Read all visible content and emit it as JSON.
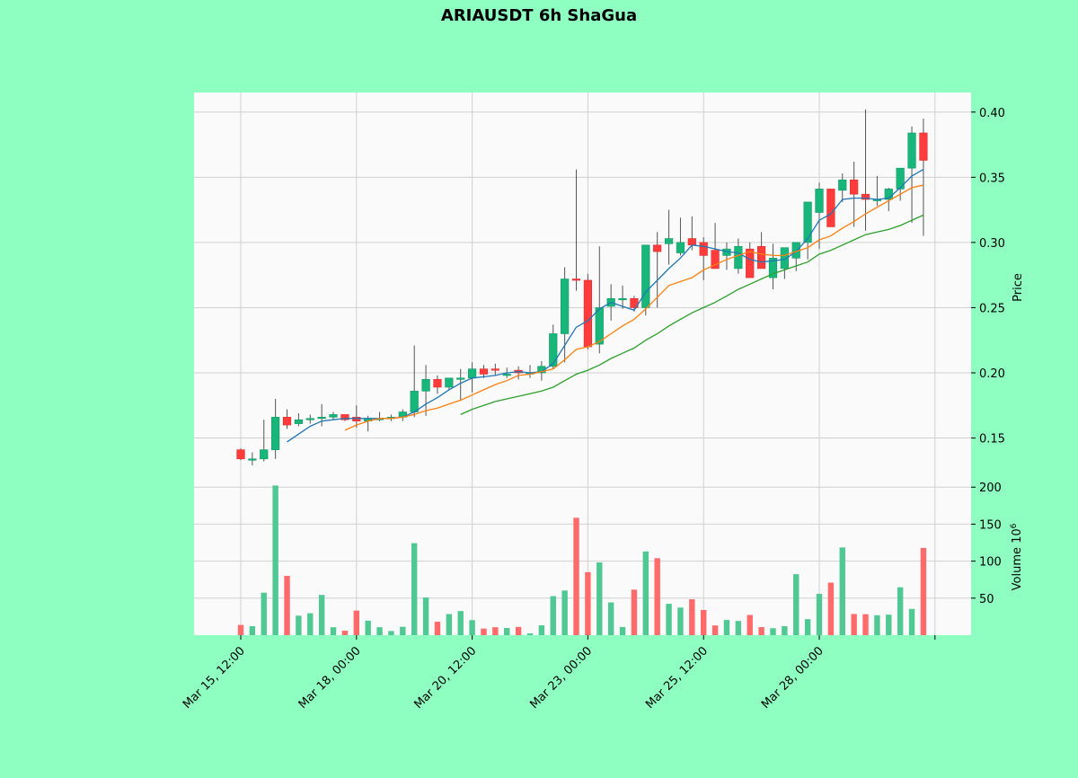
{
  "chart_data": {
    "type": "candlestick",
    "title": "ARIAUSDT 6h ShaGua",
    "price_axis": {
      "label": "Price",
      "ylim": [
        0.118,
        0.415
      ],
      "ticks": [
        0.15,
        0.2,
        0.25,
        0.3,
        0.35,
        0.4
      ],
      "tick_labels": [
        "0.15",
        "0.20",
        "0.25",
        "0.30",
        "0.35",
        "0.40"
      ]
    },
    "volume_axis": {
      "label": "Volume  10^6",
      "ylim": [
        0,
        210
      ],
      "ticks": [
        50,
        100,
        150,
        200
      ],
      "tick_labels": [
        "50",
        "100",
        "150",
        "200"
      ]
    },
    "x_ticks": [
      {
        "index": 0,
        "label": "Mar 15, 12:00"
      },
      {
        "index": 10,
        "label": "Mar 18, 00:00"
      },
      {
        "index": 20,
        "label": "Mar 20, 12:00"
      },
      {
        "index": 30,
        "label": "Mar 23, 00:00"
      },
      {
        "index": 40,
        "label": "Mar 25, 12:00"
      },
      {
        "index": 50,
        "label": "Mar 28, 00:00"
      },
      {
        "index": 60,
        "label": ""
      }
    ],
    "colors": {
      "up": "#18b67a",
      "down": "#ff3b3b",
      "volume_up": "#4fc894",
      "volume_down": "#ff6b6b",
      "ma1": "#1f77b4",
      "ma2": "#ff7f0e",
      "ma3": "#2ca02c",
      "grid": "#d0d0d0",
      "panel_bg": "#fafafa",
      "page_bg": "#8effc1"
    },
    "grid": true,
    "candles": {
      "open": [
        0.141,
        0.134,
        0.134,
        0.141,
        0.166,
        0.161,
        0.164,
        0.165,
        0.166,
        0.168,
        0.166,
        0.163,
        0.164,
        0.165,
        0.166,
        0.17,
        0.186,
        0.195,
        0.189,
        0.196,
        0.196,
        0.203,
        0.203,
        0.199,
        0.202,
        0.199,
        0.2,
        0.205,
        0.23,
        0.272,
        0.271,
        0.222,
        0.251,
        0.257,
        0.257,
        0.25,
        0.298,
        0.299,
        0.292,
        0.303,
        0.3,
        0.294,
        0.29,
        0.28,
        0.295,
        0.297,
        0.273,
        0.28,
        0.288,
        0.3,
        0.323,
        0.341,
        0.34,
        0.348,
        0.337,
        0.333,
        0.333,
        0.341,
        0.357,
        0.384
      ],
      "high": [
        0.142,
        0.139,
        0.164,
        0.18,
        0.172,
        0.169,
        0.168,
        0.176,
        0.17,
        0.168,
        0.175,
        0.167,
        0.17,
        0.168,
        0.172,
        0.221,
        0.206,
        0.198,
        0.196,
        0.203,
        0.208,
        0.206,
        0.207,
        0.204,
        0.205,
        0.206,
        0.209,
        0.237,
        0.281,
        0.356,
        0.276,
        0.297,
        0.268,
        0.267,
        0.259,
        0.278,
        0.308,
        0.325,
        0.319,
        0.32,
        0.304,
        0.315,
        0.3,
        0.303,
        0.3,
        0.308,
        0.299,
        0.29,
        0.295,
        0.303,
        0.346,
        0.337,
        0.353,
        0.362,
        0.402,
        0.351,
        0.342,
        0.347,
        0.389,
        0.395
      ],
      "low": [
        0.133,
        0.129,
        0.132,
        0.134,
        0.157,
        0.159,
        0.161,
        0.159,
        0.164,
        0.163,
        0.158,
        0.155,
        0.163,
        0.163,
        0.163,
        0.166,
        0.167,
        0.184,
        0.187,
        0.179,
        0.185,
        0.196,
        0.198,
        0.196,
        0.195,
        0.196,
        0.194,
        0.203,
        0.208,
        0.263,
        0.218,
        0.215,
        0.24,
        0.249,
        0.247,
        0.244,
        0.25,
        0.283,
        0.29,
        0.294,
        0.271,
        0.285,
        0.279,
        0.276,
        0.28,
        0.285,
        0.264,
        0.272,
        0.278,
        0.287,
        0.295,
        0.32,
        0.331,
        0.312,
        0.309,
        0.328,
        0.324,
        0.332,
        0.315,
        0.305
      ],
      "close": [
        0.134,
        0.134,
        0.141,
        0.166,
        0.16,
        0.164,
        0.165,
        0.166,
        0.168,
        0.164,
        0.163,
        0.165,
        0.165,
        0.166,
        0.17,
        0.186,
        0.195,
        0.189,
        0.196,
        0.196,
        0.203,
        0.199,
        0.202,
        0.199,
        0.2,
        0.2,
        0.205,
        0.23,
        0.272,
        0.271,
        0.22,
        0.25,
        0.257,
        0.257,
        0.25,
        0.298,
        0.293,
        0.303,
        0.3,
        0.298,
        0.29,
        0.28,
        0.295,
        0.297,
        0.273,
        0.28,
        0.288,
        0.296,
        0.3,
        0.331,
        0.341,
        0.312,
        0.348,
        0.337,
        0.333,
        0.333,
        0.341,
        0.357,
        0.384,
        0.363
      ],
      "volume": [
        13.8,
        12.1,
        57.4,
        202.2,
        80.1,
        26.3,
        29.6,
        54.4,
        10.7,
        6.0,
        33.2,
        19.5,
        10.7,
        5.6,
        11.3,
        124.3,
        50.9,
        18.1,
        28.5,
        32.6,
        20.3,
        8.9,
        10.7,
        9.7,
        11.1,
        2.4,
        13.3,
        52.7,
        60.3,
        158.6,
        85.1,
        98.2,
        44.2,
        11.0,
        61.5,
        113.1,
        104.0,
        42.4,
        37.3,
        48.5,
        34.0,
        13.1,
        20.5,
        19.2,
        27.3,
        10.9,
        9.4,
        12.1,
        82.4,
        21.6,
        55.8,
        71.0,
        118.5,
        28.6,
        28.3,
        26.9,
        27.7,
        64.7,
        35.5,
        117.9
      ]
    },
    "moving_averages": [
      {
        "values": [
          null,
          null,
          null,
          null,
          0.147,
          0.153,
          0.159,
          0.163,
          0.164,
          0.165,
          0.165,
          0.165,
          0.165,
          0.165,
          0.166,
          0.17,
          0.176,
          0.181,
          0.187,
          0.192,
          0.196,
          0.197,
          0.198,
          0.2,
          0.201,
          0.2,
          0.201,
          0.207,
          0.221,
          0.235,
          0.24,
          0.249,
          0.254,
          0.251,
          0.248,
          0.262,
          0.271,
          0.28,
          0.288,
          0.298,
          0.297,
          0.295,
          0.293,
          0.292,
          0.287,
          0.285,
          0.286,
          0.287,
          0.293,
          0.303,
          0.317,
          0.322,
          0.333,
          0.334,
          0.334,
          0.333,
          0.334,
          0.342,
          0.351,
          0.356
        ]
      },
      {
        "values": [
          null,
          null,
          null,
          null,
          null,
          null,
          null,
          null,
          null,
          0.156,
          0.16,
          0.163,
          0.165,
          0.165,
          0.166,
          0.168,
          0.171,
          0.173,
          0.176,
          0.179,
          0.183,
          0.187,
          0.191,
          0.194,
          0.198,
          0.199,
          0.201,
          0.203,
          0.21,
          0.218,
          0.22,
          0.224,
          0.23,
          0.236,
          0.241,
          0.249,
          0.258,
          0.267,
          0.27,
          0.273,
          0.279,
          0.283,
          0.287,
          0.29,
          0.293,
          0.291,
          0.29,
          0.29,
          0.293,
          0.296,
          0.302,
          0.305,
          0.311,
          0.316,
          0.322,
          0.327,
          0.332,
          0.337,
          0.342,
          0.344
        ]
      },
      {
        "values": [
          null,
          null,
          null,
          null,
          null,
          null,
          null,
          null,
          null,
          null,
          null,
          null,
          null,
          null,
          null,
          null,
          null,
          null,
          null,
          0.168,
          0.172,
          0.175,
          0.178,
          0.18,
          0.182,
          0.184,
          0.186,
          0.189,
          0.194,
          0.199,
          0.202,
          0.206,
          0.211,
          0.215,
          0.219,
          0.225,
          0.23,
          0.236,
          0.241,
          0.246,
          0.25,
          0.254,
          0.259,
          0.264,
          0.268,
          0.272,
          0.276,
          0.279,
          0.282,
          0.285,
          0.291,
          0.294,
          0.298,
          0.302,
          0.306,
          0.308,
          0.31,
          0.313,
          0.317,
          0.321
        ]
      }
    ]
  }
}
